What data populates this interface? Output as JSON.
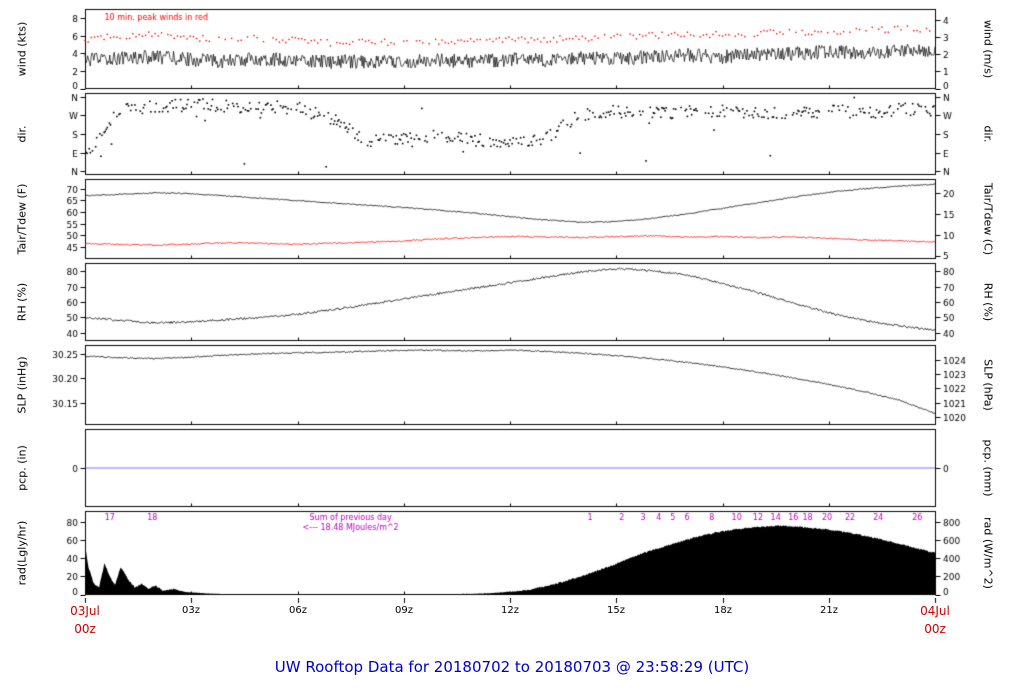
{
  "title": "UW Rooftop Data for 20180702  to  20180703 @ 23:58:29  (UTC)",
  "colors": {
    "title_blue": "#0000cc",
    "date_red": "#cc0000",
    "peak_wind_red": "#ff0000",
    "annotation_purple": "#bb00bb",
    "pcp_blue": "#5050ff"
  },
  "x_axis": {
    "range_hours": [
      0,
      24
    ],
    "ticks": [
      "03z",
      "06z",
      "09z",
      "12z",
      "15z",
      "18z",
      "21z"
    ],
    "start_label": "03Jul",
    "start_sub": "00z",
    "end_label": "04Jul",
    "end_sub": "00z"
  },
  "chart_data": [
    {
      "id": "wind",
      "type": "line",
      "height": 82,
      "ylabel_left": "wind (kts)",
      "ylabel_right": "wind (m/s)",
      "ylim": [
        0,
        9
      ],
      "yticks": [
        [
          0,
          "0"
        ],
        [
          2,
          "2"
        ],
        [
          4,
          "4"
        ],
        [
          6,
          "6"
        ],
        [
          8,
          "8"
        ]
      ],
      "right_ylim": [
        0,
        4.63
      ],
      "yticks_right": [
        [
          0,
          "0"
        ],
        [
          1,
          "1"
        ],
        [
          2,
          "2"
        ],
        [
          3,
          "3"
        ],
        [
          4,
          "4"
        ]
      ],
      "annotations": [
        {
          "t": "10 min. peak winds in red",
          "x": 0.55,
          "y": 12,
          "c": "#ff0000",
          "a": "left",
          "s": 8
        }
      ],
      "series": [
        {
          "name": "wind-speed",
          "draw": "line",
          "color": "#000000",
          "noise": 0.8,
          "step": 0.025,
          "width": 0.7,
          "x": [
            0,
            1,
            2,
            3,
            4,
            5,
            6,
            7,
            8,
            9,
            10,
            11,
            12,
            13,
            14,
            15,
            16,
            17,
            18,
            19,
            20,
            21,
            22,
            23,
            24
          ],
          "y": [
            3.2,
            3.5,
            3.6,
            3.3,
            3.1,
            3.4,
            3.2,
            3.0,
            3.1,
            3.0,
            3.2,
            3.1,
            3.3,
            3.2,
            3.5,
            3.4,
            3.6,
            3.8,
            3.6,
            3.9,
            4.0,
            4.2,
            4.0,
            4.3,
            4.2
          ]
        },
        {
          "name": "peak-wind",
          "draw": "dots",
          "color": "#ff0000",
          "noise": 0.4,
          "step": 0.09,
          "p": 0.8,
          "x": [
            0,
            1,
            2,
            3,
            4,
            5,
            6,
            7,
            8,
            9,
            10,
            11,
            12,
            13,
            14,
            15,
            16,
            17,
            18,
            19,
            20,
            21,
            22,
            23,
            24
          ],
          "y": [
            5.6,
            6.0,
            6.2,
            5.8,
            5.5,
            5.7,
            5.4,
            5.2,
            5.3,
            5.2,
            5.4,
            5.3,
            5.5,
            5.6,
            5.8,
            5.8,
            6.0,
            6.2,
            6.1,
            6.3,
            6.4,
            6.6,
            6.5,
            6.8,
            6.6
          ]
        }
      ]
    },
    {
      "id": "dir",
      "type": "scatter",
      "height": 84,
      "ylabel_left": "dir.",
      "ylabel_right": "dir.",
      "ylim": [
        -15,
        375
      ],
      "yticks": [
        [
          360,
          "N"
        ],
        [
          270,
          "W"
        ],
        [
          180,
          "S"
        ],
        [
          90,
          "E"
        ],
        [
          0,
          "N"
        ]
      ],
      "right_ylim": [
        -15,
        375
      ],
      "yticks_right": [
        [
          360,
          "N"
        ],
        [
          270,
          "W"
        ],
        [
          180,
          "S"
        ],
        [
          90,
          "E"
        ],
        [
          0,
          "N"
        ]
      ],
      "series": [
        {
          "name": "wind-direction",
          "draw": "scatter",
          "color": "#000000",
          "jitter": 30,
          "p": 0.55,
          "outlier_p": 0.02,
          "step": 0.03,
          "x": [
            0,
            1,
            2,
            3,
            4,
            5,
            6,
            7,
            8,
            9,
            10,
            11,
            12,
            13,
            14,
            15,
            16,
            17,
            18,
            19,
            20,
            21,
            22,
            23,
            24
          ],
          "y": [
            80,
            300,
            310,
            320,
            315,
            310,
            305,
            250,
            150,
            160,
            170,
            150,
            140,
            160,
            275,
            285,
            280,
            285,
            290,
            285,
            280,
            290,
            285,
            300,
            295
          ]
        }
      ]
    },
    {
      "id": "temperature",
      "type": "line",
      "height": 82,
      "ylabel_left": "Tair/Tdew (F)",
      "ylabel_right": "Tair/Tdew (C)",
      "ylim": [
        40,
        74
      ],
      "yticks": [
        [
          45,
          "45"
        ],
        [
          50,
          "50"
        ],
        [
          55,
          "55"
        ],
        [
          60,
          "60"
        ],
        [
          65,
          "65"
        ],
        [
          70,
          "70"
        ]
      ],
      "right_ylim": [
        4.44,
        23.33
      ],
      "yticks_right": [
        [
          5,
          "5"
        ],
        [
          10,
          "10"
        ],
        [
          15,
          "15"
        ],
        [
          20,
          "20"
        ]
      ],
      "series": [
        {
          "name": "air-temperature",
          "draw": "line",
          "color": "#000000",
          "noise": 0.22,
          "step": 0.03,
          "width": 0.8,
          "x": [
            0,
            1,
            2,
            3,
            4,
            5,
            6,
            7,
            8,
            9,
            10,
            11,
            12,
            13,
            14,
            15,
            16,
            17,
            18,
            19,
            20,
            21,
            22,
            23,
            24
          ],
          "y": [
            67,
            67.6,
            68.3,
            67.9,
            66.9,
            65.9,
            64.9,
            63.9,
            62.9,
            61.9,
            60.8,
            59.5,
            58.0,
            56.6,
            55.6,
            55.9,
            57.2,
            59.2,
            61.6,
            64.0,
            66.4,
            68.5,
            70.0,
            71.1,
            72.0
          ]
        },
        {
          "name": "dew-point",
          "draw": "line",
          "color": "#ff0000",
          "noise": 0.3,
          "step": 0.03,
          "width": 0.8,
          "x": [
            0,
            1,
            2,
            3,
            4,
            5,
            6,
            7,
            8,
            9,
            10,
            11,
            12,
            13,
            14,
            15,
            16,
            17,
            18,
            19,
            20,
            21,
            22,
            23,
            24
          ],
          "y": [
            46.5,
            46.0,
            45.8,
            46.2,
            46.8,
            46.5,
            46.2,
            46.6,
            47.0,
            47.5,
            48.5,
            49.0,
            49.5,
            49.3,
            49.0,
            49.5,
            49.8,
            49.2,
            49.5,
            49.0,
            49.3,
            48.6,
            48.0,
            47.6,
            47.1
          ]
        }
      ]
    },
    {
      "id": "rh",
      "type": "line",
      "height": 80,
      "ylabel_left": "RH (%)",
      "ylabel_right": "RH (%)",
      "ylim": [
        35,
        85
      ],
      "yticks": [
        [
          40,
          "40"
        ],
        [
          50,
          "50"
        ],
        [
          60,
          "60"
        ],
        [
          70,
          "70"
        ],
        [
          80,
          "80"
        ]
      ],
      "right_ylim": [
        35,
        85
      ],
      "yticks_right": [
        [
          40,
          "40"
        ],
        [
          50,
          "50"
        ],
        [
          60,
          "60"
        ],
        [
          70,
          "70"
        ],
        [
          80,
          "80"
        ]
      ],
      "series": [
        {
          "name": "relative-humidity",
          "draw": "line",
          "color": "#000000",
          "noise": 0.7,
          "step": 0.03,
          "width": 0.8,
          "x": [
            0,
            1,
            2,
            3,
            4,
            5,
            6,
            7,
            8,
            9,
            10,
            11,
            12,
            13,
            14,
            15,
            16,
            17,
            18,
            19,
            20,
            21,
            22,
            23,
            24
          ],
          "y": [
            50,
            48,
            46.5,
            47,
            48.5,
            50,
            52,
            55,
            58.5,
            62,
            65.5,
            69,
            72.5,
            76,
            79.5,
            81.5,
            80.5,
            77.5,
            72,
            66,
            59.5,
            53,
            48,
            44.5,
            41.5
          ]
        }
      ]
    },
    {
      "id": "slp",
      "type": "line",
      "height": 82,
      "ylabel_left": "SLP (inHg)",
      "ylabel_right": "SLP (hPa)",
      "ylim": [
        30.105,
        30.268
      ],
      "yticks": [
        [
          30.15,
          "30.15"
        ],
        [
          30.2,
          "30.20"
        ],
        [
          30.25,
          "30.25"
        ]
      ],
      "right_ylim": [
        1019.47,
        1024.99
      ],
      "yticks_right": [
        [
          1020,
          "1020"
        ],
        [
          1021,
          "1021"
        ],
        [
          1022,
          "1022"
        ],
        [
          1023,
          "1023"
        ],
        [
          1024,
          "1024"
        ]
      ],
      "series": [
        {
          "name": "sea-level-pressure",
          "draw": "line",
          "color": "#000000",
          "noise": 0.0013,
          "step": 0.03,
          "width": 0.8,
          "x": [
            0,
            1,
            2,
            3,
            4,
            5,
            6,
            7,
            8,
            9,
            10,
            11,
            12,
            13,
            14,
            15,
            16,
            17,
            18,
            19,
            20,
            21,
            22,
            23,
            24
          ],
          "y": [
            30.246,
            30.243,
            30.241,
            30.244,
            30.248,
            30.251,
            30.253,
            30.254,
            30.256,
            30.258,
            30.258,
            30.257,
            30.258,
            30.256,
            30.252,
            30.247,
            30.241,
            30.233,
            30.224,
            30.213,
            30.201,
            30.188,
            30.173,
            30.155,
            30.128
          ]
        }
      ]
    },
    {
      "id": "pcp",
      "type": "line",
      "height": 80,
      "ylabel_left": "pcp. (in)",
      "ylabel_right": "pcp. (mm)",
      "ylim": [
        -1,
        1
      ],
      "yticks": [
        [
          0,
          "0"
        ]
      ],
      "right_ylim": [
        -1,
        1
      ],
      "yticks_right": [
        [
          0,
          "0"
        ]
      ],
      "series": [
        {
          "name": "precipitation",
          "draw": "line",
          "color": "#5050ff",
          "noise": 0,
          "step": 1,
          "width": 0.8,
          "x": [
            0,
            24
          ],
          "y": [
            0,
            0
          ]
        }
      ]
    },
    {
      "id": "radiation",
      "type": "area",
      "height": 86,
      "ylabel_left": "rad(Lgly/hr)",
      "ylabel_right": "rad (W/m^2)",
      "ylim": [
        0,
        92
      ],
      "yticks": [
        [
          0,
          "0"
        ],
        [
          20,
          "20"
        ],
        [
          40,
          "40"
        ],
        [
          60,
          "60"
        ],
        [
          80,
          "80"
        ]
      ],
      "right_ylim": [
        0,
        920
      ],
      "yticks_right": [
        [
          0,
          "0"
        ],
        [
          200,
          "200"
        ],
        [
          400,
          "400"
        ],
        [
          600,
          "600"
        ],
        [
          800,
          "800"
        ]
      ],
      "annotations": [
        {
          "t": "17",
          "x": 0.7,
          "y": 10,
          "c": "#bb00bb"
        },
        {
          "t": "18",
          "x": 1.9,
          "y": 10,
          "c": "#bb00bb"
        },
        {
          "t": "Sum of previous day",
          "x": 7.5,
          "y": 10,
          "c": "#bb00bb"
        },
        {
          "t": "<--- 18.48 MJoules/m^2",
          "x": 7.5,
          "y": 20,
          "c": "#bb00bb"
        },
        {
          "t": "1",
          "x": 14.26,
          "y": 10,
          "c": "#bb00bb"
        },
        {
          "t": "2",
          "x": 15.16,
          "y": 10,
          "c": "#bb00bb"
        },
        {
          "t": "3",
          "x": 15.76,
          "y": 10,
          "c": "#bb00bb"
        },
        {
          "t": "4",
          "x": 16.2,
          "y": 10,
          "c": "#bb00bb"
        },
        {
          "t": "5",
          "x": 16.6,
          "y": 10,
          "c": "#bb00bb"
        },
        {
          "t": "6",
          "x": 17.0,
          "y": 10,
          "c": "#bb00bb"
        },
        {
          "t": "8",
          "x": 17.7,
          "y": 10,
          "c": "#bb00bb"
        },
        {
          "t": "10",
          "x": 18.4,
          "y": 10,
          "c": "#bb00bb"
        },
        {
          "t": "12",
          "x": 19.0,
          "y": 10,
          "c": "#bb00bb"
        },
        {
          "t": "14",
          "x": 19.5,
          "y": 10,
          "c": "#bb00bb"
        },
        {
          "t": "16",
          "x": 20.0,
          "y": 10,
          "c": "#bb00bb"
        },
        {
          "t": "18",
          "x": 20.4,
          "y": 10,
          "c": "#bb00bb"
        },
        {
          "t": "20",
          "x": 20.95,
          "y": 10,
          "c": "#bb00bb"
        },
        {
          "t": "22",
          "x": 21.6,
          "y": 10,
          "c": "#bb00bb"
        },
        {
          "t": "24",
          "x": 22.4,
          "y": 10,
          "c": "#bb00bb"
        },
        {
          "t": "26",
          "x": 23.5,
          "y": 10,
          "c": "#bb00bb"
        }
      ],
      "series": [
        {
          "name": "solar-radiation",
          "draw": "area",
          "color": "#000000",
          "noise": 0.9,
          "noise_scaled": true,
          "min0": true,
          "step": 0.02,
          "x": [
            0,
            0.1,
            0.25,
            0.4,
            0.55,
            0.7,
            0.85,
            1,
            1.1,
            1.25,
            1.4,
            1.6,
            1.8,
            2,
            2.2,
            2.5,
            2.8,
            3.1,
            3.5,
            4,
            4.5,
            5,
            6,
            7,
            8,
            9,
            10,
            11,
            11.5,
            12,
            12.5,
            13,
            13.5,
            14,
            14.5,
            15,
            15.5,
            16,
            16.5,
            17,
            17.5,
            18,
            18.5,
            19,
            19.5,
            20,
            20.5,
            21,
            21.5,
            22,
            22.5,
            23,
            23.5,
            24
          ],
          "y": [
            55,
            30,
            12,
            8,
            35,
            20,
            10,
            30,
            25,
            15,
            8,
            12,
            6,
            10,
            4,
            6,
            3,
            2,
            1,
            0.5,
            0.3,
            0.2,
            0.1,
            0.1,
            0.1,
            0.1,
            0.3,
            0.8,
            1.5,
            3,
            5,
            9,
            14,
            20,
            27,
            34,
            42,
            49,
            55,
            61,
            66,
            70,
            73,
            75,
            76,
            75.5,
            74,
            72,
            69,
            65,
            61,
            56,
            51,
            46
          ]
        }
      ]
    }
  ]
}
